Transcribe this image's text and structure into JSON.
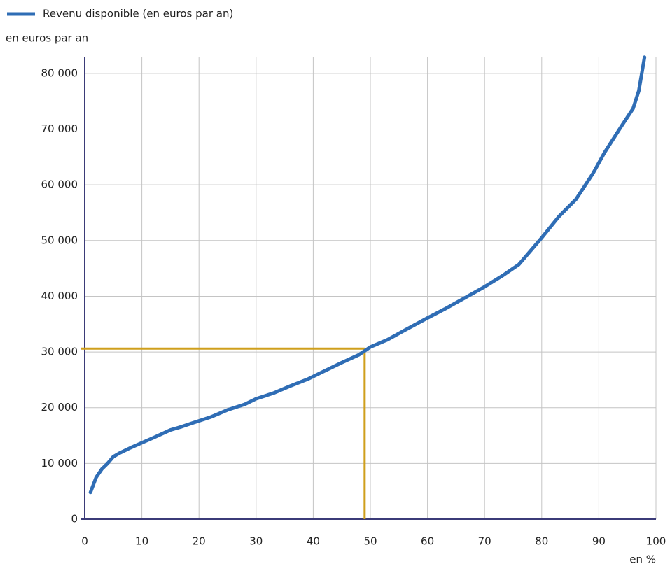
{
  "chart_data": {
    "type": "line",
    "y_label": "en euros par an",
    "x_label": "en %",
    "series": [
      {
        "name": "Revenu disponible (en euros par an)",
        "color": "#2f6db5",
        "x": [
          1,
          2,
          3,
          4,
          5,
          6,
          8,
          10,
          12,
          15,
          17,
          19,
          22,
          25,
          28,
          30,
          33,
          36,
          39,
          42,
          45,
          48,
          50,
          53,
          56,
          60,
          63,
          66,
          70,
          73,
          76,
          80,
          83,
          86,
          89,
          91,
          94,
          96,
          97,
          98
        ],
        "values": [
          4800,
          7500,
          9000,
          10000,
          11200,
          11800,
          12800,
          13700,
          14600,
          16000,
          16600,
          17300,
          18300,
          19600,
          20600,
          21600,
          22600,
          23900,
          25100,
          26600,
          28100,
          29500,
          30900,
          32200,
          33900,
          36100,
          37700,
          39400,
          41700,
          43600,
          45700,
          50500,
          54300,
          57400,
          62100,
          65800,
          70600,
          73700,
          76900,
          82900
        ]
      }
    ],
    "reference": {
      "x": 49,
      "y": 30600,
      "color": "#cf9f1c"
    },
    "xlim": [
      0,
      100
    ],
    "xticks": [
      0,
      10,
      20,
      30,
      40,
      50,
      60,
      70,
      80,
      90,
      100
    ],
    "ylim": [
      0,
      83000
    ],
    "yticks": [
      0,
      {
        "value": 10000,
        "label": "10 000"
      },
      {
        "value": 20000,
        "label": "20 000"
      },
      {
        "value": 30000,
        "label": "30 000"
      },
      {
        "value": 40000,
        "label": "40 000"
      },
      {
        "value": 50000,
        "label": "50 000"
      },
      {
        "value": 60000,
        "label": "60 000"
      },
      {
        "value": 70000,
        "label": "70 000"
      },
      {
        "value": 80000,
        "label": "80 000"
      }
    ],
    "grid": true
  }
}
